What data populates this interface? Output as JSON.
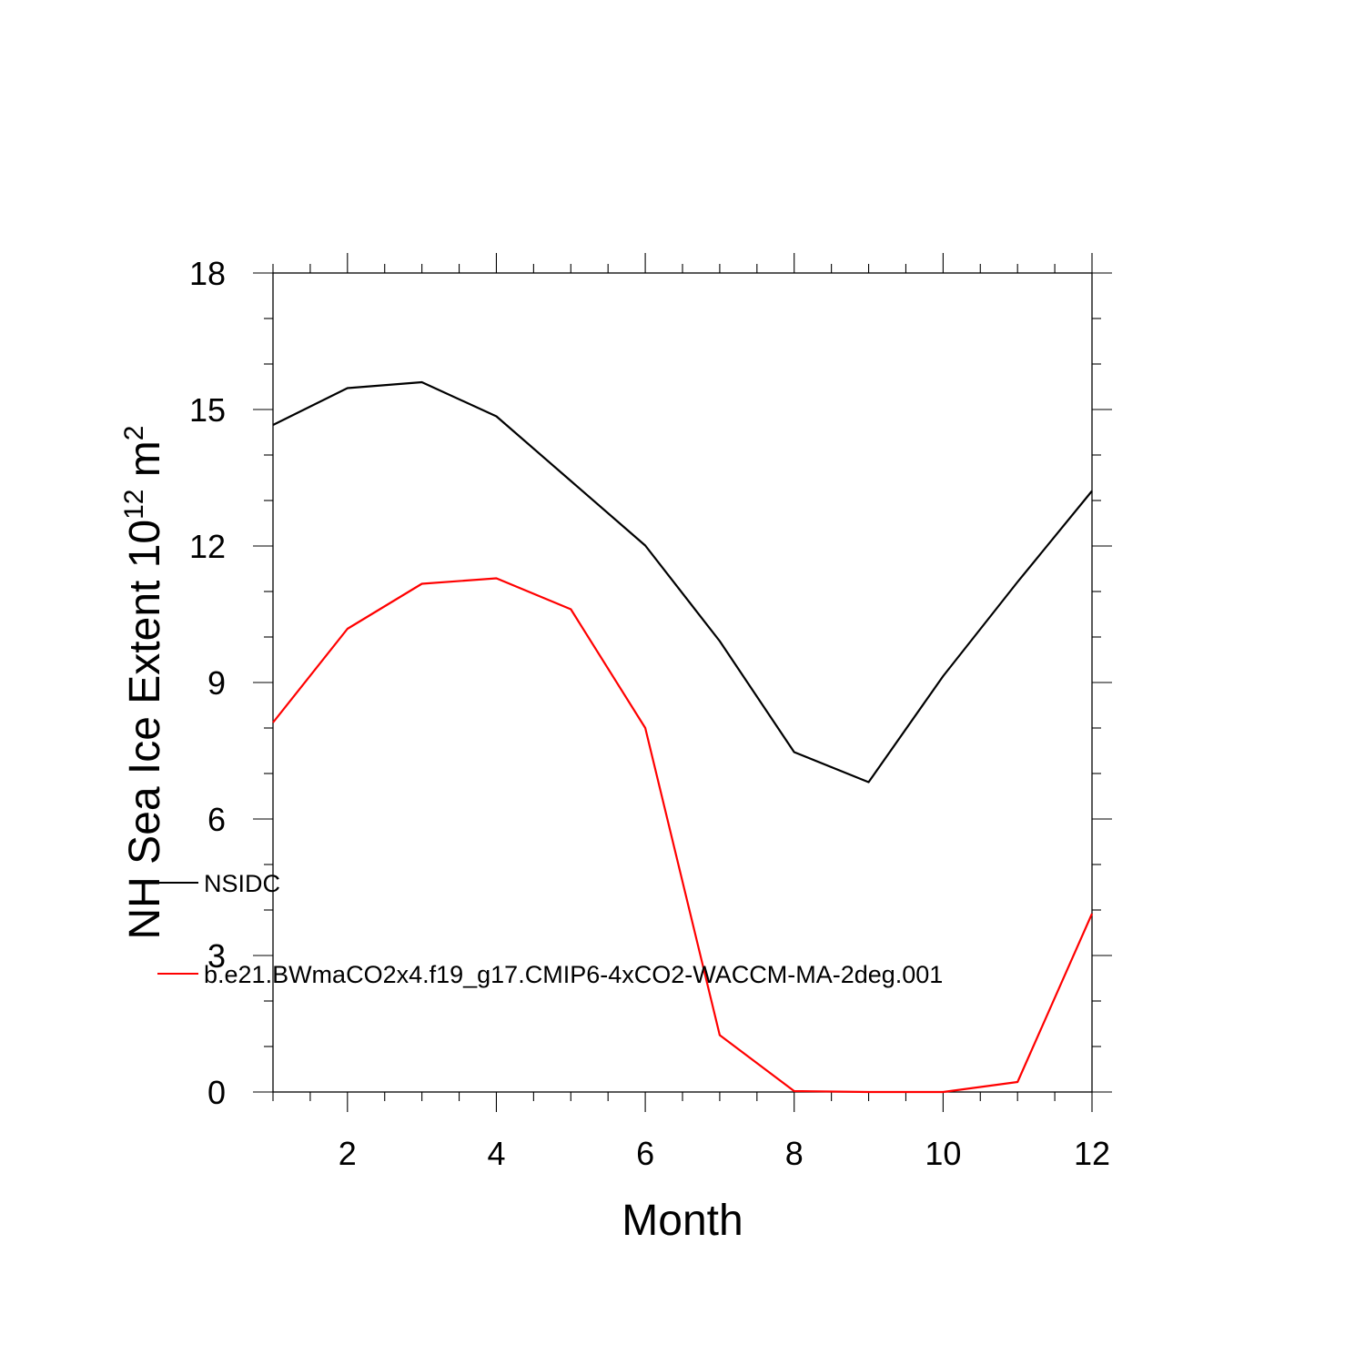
{
  "chart_data": {
    "type": "line",
    "title": "",
    "xlabel": "Month",
    "ylabel": "NH Sea Ice Extent 10",
    "ylabel_sup1": "12",
    "ylabel_unit": " m",
    "ylabel_sup2": "2",
    "xlim": [
      1,
      12
    ],
    "ylim": [
      0,
      18
    ],
    "xticks": [
      2,
      4,
      6,
      8,
      10,
      12
    ],
    "yticks": [
      0,
      3,
      6,
      9,
      12,
      15,
      18
    ],
    "grid": false,
    "legend_position": "inside-left",
    "x": [
      1,
      2,
      3,
      4,
      5,
      6,
      7,
      8,
      9,
      10,
      11,
      12
    ],
    "series": [
      {
        "name": "NSIDC",
        "color": "#000000",
        "values": [
          14.66,
          15.47,
          15.6,
          14.85,
          13.43,
          12.01,
          9.91,
          7.47,
          6.81,
          9.14,
          11.21,
          13.21
        ]
      },
      {
        "name": "b.e21.BWmaCO2x4.f19_g17.CMIP6-4xCO2-WACCM-MA-2deg.001",
        "color": "#ff0000",
        "values": [
          8.12,
          10.18,
          11.17,
          11.29,
          10.61,
          8.0,
          1.25,
          0.02,
          0.0,
          0.0,
          0.22,
          3.92
        ]
      }
    ]
  }
}
